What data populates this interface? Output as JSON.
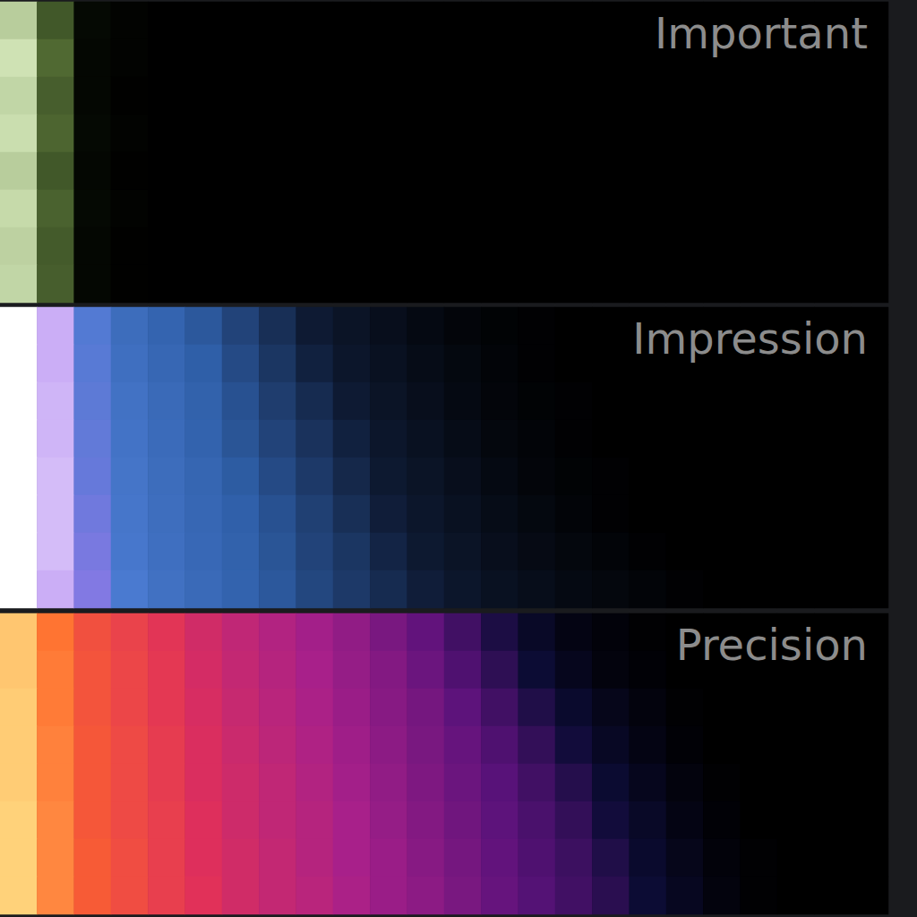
{
  "chart_data": [
    {
      "type": "heatmap",
      "title": "Important",
      "tick_labels": false,
      "colors": [
        "#000000",
        "#16240c",
        "#5e7a3c",
        "#cfe2b4",
        "#ffffff"
      ],
      "color_range": [
        0,
        100
      ],
      "values": [
        [
          70,
          40,
          6,
          2,
          0,
          0,
          0,
          0,
          0,
          0,
          0,
          0,
          0,
          0,
          0,
          0,
          0,
          0,
          0,
          0,
          0,
          0,
          0,
          0
        ],
        [
          75,
          45,
          5,
          2,
          0,
          0,
          0,
          0,
          0,
          0,
          0,
          0,
          0,
          0,
          0,
          0,
          0,
          0,
          0,
          0,
          0,
          0,
          0,
          0
        ],
        [
          72,
          42,
          5,
          1,
          0,
          0,
          0,
          0,
          0,
          0,
          0,
          0,
          0,
          0,
          0,
          0,
          0,
          0,
          0,
          0,
          0,
          0,
          0,
          0
        ],
        [
          74,
          44,
          6,
          2,
          0,
          0,
          0,
          0,
          0,
          0,
          0,
          0,
          0,
          0,
          0,
          0,
          0,
          0,
          0,
          0,
          0,
          0,
          0,
          0
        ],
        [
          70,
          40,
          5,
          1,
          0,
          0,
          0,
          0,
          0,
          0,
          0,
          0,
          0,
          0,
          0,
          0,
          0,
          0,
          0,
          0,
          0,
          0,
          0,
          0
        ],
        [
          73,
          43,
          6,
          2,
          0,
          0,
          0,
          0,
          0,
          0,
          0,
          0,
          0,
          0,
          0,
          0,
          0,
          0,
          0,
          0,
          0,
          0,
          0,
          0
        ],
        [
          71,
          41,
          5,
          1,
          0,
          0,
          0,
          0,
          0,
          0,
          0,
          0,
          0,
          0,
          0,
          0,
          0,
          0,
          0,
          0,
          0,
          0,
          0,
          0
        ],
        [
          72,
          42,
          5,
          1,
          0,
          0,
          0,
          0,
          0,
          0,
          0,
          0,
          0,
          0,
          0,
          0,
          0,
          0,
          0,
          0,
          0,
          0,
          0,
          0
        ]
      ]
    },
    {
      "type": "heatmap",
      "title": "Impression",
      "tick_labels": false,
      "colors": [
        "#000000",
        "#0e1a33",
        "#2f5fa8",
        "#4a7ad0",
        "#a878f0",
        "#ffffff"
      ],
      "color_range": [
        0,
        100
      ],
      "values": [
        [
          100,
          88,
          62,
          50,
          44,
          38,
          32,
          26,
          20,
          15,
          11,
          7,
          4,
          2,
          1,
          0,
          0,
          0,
          0,
          0,
          0,
          0,
          0,
          0
        ],
        [
          100,
          88,
          63,
          52,
          46,
          40,
          34,
          28,
          22,
          17,
          13,
          9,
          6,
          3,
          1,
          0,
          0,
          0,
          0,
          0,
          0,
          0,
          0,
          0
        ],
        [
          100,
          89,
          64,
          54,
          48,
          42,
          36,
          30,
          25,
          20,
          15,
          11,
          7,
          4,
          2,
          1,
          0,
          0,
          0,
          0,
          0,
          0,
          0,
          0
        ],
        [
          100,
          89,
          65,
          55,
          49,
          43,
          37,
          32,
          27,
          22,
          17,
          13,
          9,
          5,
          3,
          1,
          0,
          0,
          0,
          0,
          0,
          0,
          0,
          0
        ],
        [
          100,
          90,
          66,
          56,
          50,
          45,
          39,
          34,
          29,
          24,
          19,
          15,
          11,
          7,
          4,
          2,
          1,
          0,
          0,
          0,
          0,
          0,
          0,
          0
        ],
        [
          100,
          90,
          68,
          57,
          51,
          46,
          41,
          36,
          31,
          26,
          21,
          17,
          13,
          9,
          6,
          3,
          1,
          0,
          0,
          0,
          0,
          0,
          0,
          0
        ],
        [
          100,
          90,
          70,
          58,
          52,
          47,
          42,
          37,
          32,
          28,
          23,
          19,
          15,
          11,
          8,
          5,
          3,
          1,
          0,
          0,
          0,
          0,
          0,
          0
        ],
        [
          100,
          88,
          72,
          60,
          53,
          48,
          43,
          38,
          33,
          29,
          25,
          21,
          17,
          13,
          10,
          7,
          5,
          3,
          1,
          0,
          0,
          0,
          0,
          0
        ]
      ]
    },
    {
      "type": "heatmap",
      "title": "Precision",
      "tick_labels": false,
      "colors": [
        "#000000",
        "#0c0c36",
        "#5a127a",
        "#a8208a",
        "#e0305a",
        "#ff6a2a",
        "#ffd27a"
      ],
      "color_range": [
        0,
        100
      ],
      "values": [
        [
          98,
          85,
          76,
          72,
          68,
          62,
          57,
          53,
          49,
          45,
          40,
          35,
          28,
          20,
          12,
          6,
          3,
          1,
          0,
          0,
          0,
          0,
          0,
          0
        ],
        [
          98,
          86,
          77,
          73,
          69,
          63,
          58,
          54,
          50,
          46,
          42,
          37,
          31,
          24,
          16,
          9,
          4,
          2,
          0,
          0,
          0,
          0,
          0,
          0
        ],
        [
          99,
          86,
          77,
          73,
          69,
          64,
          59,
          55,
          51,
          47,
          43,
          39,
          34,
          28,
          21,
          14,
          8,
          4,
          1,
          0,
          0,
          0,
          0,
          0
        ],
        [
          99,
          87,
          78,
          74,
          70,
          65,
          60,
          56,
          52,
          48,
          44,
          40,
          36,
          31,
          25,
          18,
          11,
          6,
          2,
          0,
          0,
          0,
          0,
          0
        ],
        [
          99,
          87,
          78,
          74,
          70,
          65,
          61,
          57,
          53,
          49,
          45,
          41,
          37,
          33,
          28,
          22,
          15,
          9,
          4,
          1,
          0,
          0,
          0,
          0
        ],
        [
          100,
          88,
          78,
          74,
          71,
          66,
          61,
          57,
          54,
          50,
          46,
          42,
          38,
          34,
          30,
          25,
          18,
          12,
          6,
          2,
          0,
          0,
          0,
          0
        ],
        [
          100,
          88,
          79,
          75,
          71,
          66,
          62,
          58,
          54,
          50,
          47,
          43,
          39,
          35,
          31,
          27,
          21,
          14,
          8,
          3,
          1,
          0,
          0,
          0
        ],
        [
          100,
          88,
          79,
          75,
          71,
          67,
          62,
          58,
          55,
          51,
          47,
          44,
          40,
          36,
          32,
          28,
          23,
          16,
          10,
          4,
          1,
          0,
          0,
          0
        ]
      ]
    }
  ]
}
